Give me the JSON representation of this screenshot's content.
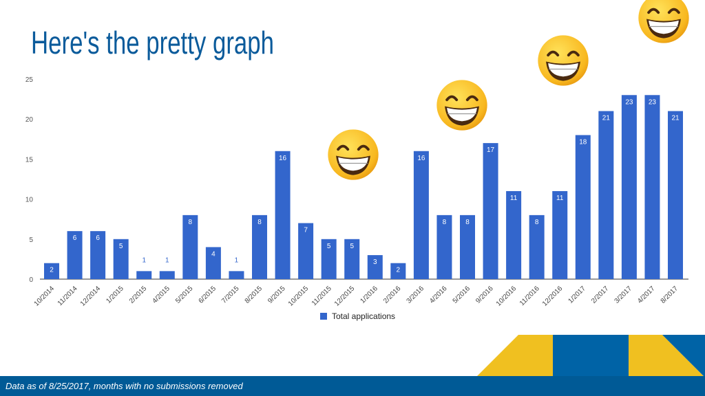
{
  "slide": {
    "title": "Here's the pretty graph",
    "footer_note": "Data as of 8/25/2017, months with no submissions removed",
    "decorations": [
      "grinning-face-with-smiling-eyes-emoji",
      "grinning-face-with-smiling-eyes-emoji",
      "grinning-face-with-smiling-eyes-emoji",
      "grinning-face-with-smiling-eyes-emoji"
    ]
  },
  "colors": {
    "title": "#0b5b9b",
    "bar": "#3366cc",
    "footer": "#005a96",
    "accent_yellow": "#f0c020",
    "accent_blue": "#0063a6"
  },
  "chart_data": {
    "type": "bar",
    "title": "",
    "xlabel": "",
    "ylabel": "",
    "ylim": [
      0,
      25
    ],
    "yticks": [
      0,
      5,
      10,
      15,
      20,
      25
    ],
    "grid": false,
    "legend": {
      "position": "bottom",
      "entries": [
        "Total applications"
      ]
    },
    "categories": [
      "10/2014",
      "11/2014",
      "12/2014",
      "1/2015",
      "2/2015",
      "4/2015",
      "5/2015",
      "6/2015",
      "7/2015",
      "8/2015",
      "9/2015",
      "10/2015",
      "11/2015",
      "12/2015",
      "1/2016",
      "2/2016",
      "3/2016",
      "4/2016",
      "5/2016",
      "9/2016",
      "10/2016",
      "11/2016",
      "12/2016",
      "1/2017",
      "2/2017",
      "3/2017",
      "4/2017",
      "8/2017"
    ],
    "series": [
      {
        "name": "Total applications",
        "values": [
          2,
          6,
          6,
          5,
          1,
          1,
          8,
          4,
          1,
          8,
          16,
          7,
          5,
          5,
          3,
          2,
          16,
          8,
          8,
          17,
          11,
          8,
          11,
          18,
          21,
          23,
          23,
          21
        ]
      }
    ]
  }
}
